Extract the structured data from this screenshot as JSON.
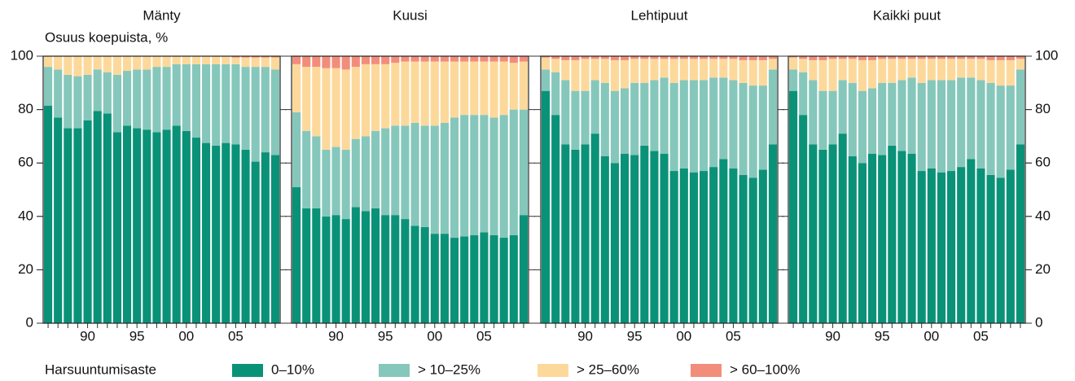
{
  "chart_data": [
    {
      "type": "bar",
      "title": "Mänty",
      "y_label": "Osuus koepuista, %",
      "legend_title": "Harsuuntumisaste",
      "categories": [
        null,
        null,
        null,
        null,
        "90",
        null,
        null,
        null,
        null,
        "95",
        null,
        null,
        null,
        null,
        "00",
        null,
        null,
        null,
        null,
        "05",
        null,
        null,
        null,
        null
      ],
      "ylim": [
        0,
        100
      ],
      "yticks": [
        0,
        20,
        40,
        60,
        80,
        100
      ],
      "series": [
        {
          "name": "0–10%",
          "color": "#0a9278",
          "values": [
            81.5,
            77,
            73,
            73,
            76,
            79.5,
            78.5,
            71.5,
            74,
            73,
            72.5,
            71.5,
            72.5,
            74,
            72,
            69.5,
            67.5,
            66.5,
            67.5,
            67,
            65,
            60.5,
            64,
            63
          ]
        },
        {
          "name": "> 10–25%",
          "color": "#86c7bb",
          "values": [
            14.5,
            18,
            20,
            19.5,
            17,
            15.5,
            15.5,
            21.5,
            20.5,
            22,
            22.5,
            24.5,
            23.5,
            23,
            25,
            27.5,
            29.5,
            30.5,
            29.5,
            30,
            31,
            35.5,
            32,
            32
          ]
        },
        {
          "name": "> 25–60%",
          "color": "#fcd99b",
          "values": [
            4,
            5,
            7,
            7.5,
            7,
            5,
            6,
            7,
            5.5,
            5,
            5,
            4,
            4,
            3,
            3,
            3,
            3,
            3,
            3,
            2.5,
            3.5,
            3.5,
            3.5,
            4.5
          ]
        },
        {
          "name": "> 60–100%",
          "color": "#f28d7c",
          "values": [
            0,
            0,
            0,
            0,
            0,
            0,
            0,
            0,
            0,
            0,
            0,
            0,
            0,
            0,
            0,
            0,
            0,
            0,
            0,
            0.5,
            0.5,
            0.5,
            0.5,
            0.5
          ]
        }
      ]
    },
    {
      "type": "bar",
      "title": "Kuusi",
      "categories": [
        null,
        null,
        null,
        null,
        "90",
        null,
        null,
        null,
        null,
        "95",
        null,
        null,
        null,
        null,
        "00",
        null,
        null,
        null,
        null,
        "05",
        null,
        null,
        null,
        null
      ],
      "ylim": [
        0,
        100
      ],
      "yticks": [
        0,
        20,
        40,
        60,
        80,
        100
      ],
      "series": [
        {
          "color": "#0a9278",
          "values": [
            51,
            43,
            43,
            40,
            40.5,
            39,
            43.5,
            42,
            43,
            40.5,
            40.5,
            39,
            36.5,
            36,
            33.5,
            33.5,
            32,
            32.5,
            33,
            34,
            33,
            32,
            33,
            40.5
          ]
        },
        {
          "color": "#86c7bb",
          "values": [
            28,
            29,
            27,
            25,
            25.5,
            26,
            25.5,
            28,
            29,
            32.5,
            33.5,
            35,
            38.5,
            38,
            40.5,
            41.5,
            45,
            45.5,
            45,
            44,
            44,
            46,
            47,
            39.5
          ]
        },
        {
          "color": "#fcd99b",
          "values": [
            18,
            24,
            26,
            30.5,
            29.5,
            30,
            27,
            27,
            25,
            24,
            23.5,
            24,
            23,
            24,
            24,
            23,
            21,
            20,
            20,
            20,
            21,
            20,
            17.5,
            18
          ]
        },
        {
          "color": "#f28d7c",
          "values": [
            3,
            4,
            4,
            4.5,
            4.5,
            5,
            4,
            3,
            3,
            3,
            2.5,
            2,
            2,
            2,
            2,
            2,
            2,
            2,
            2,
            2,
            2,
            2,
            2.5,
            2
          ]
        }
      ]
    },
    {
      "type": "bar",
      "title": "Lehtipuut",
      "categories": [
        null,
        null,
        null,
        null,
        "90",
        null,
        null,
        null,
        null,
        "95",
        null,
        null,
        null,
        null,
        "00",
        null,
        null,
        null,
        null,
        "05",
        null,
        null,
        null,
        null
      ],
      "ylim": [
        0,
        100
      ],
      "yticks": [
        0,
        20,
        40,
        60,
        80,
        100
      ],
      "series": [
        {
          "color": "#0a9278",
          "values": [
            87,
            78,
            67,
            65,
            67,
            71,
            62.5,
            60,
            63.5,
            63,
            66.5,
            64.5,
            63.5,
            57,
            58,
            56.5,
            57,
            58.5,
            61.5,
            58,
            55.5,
            54.5,
            57.5,
            67
          ]
        },
        {
          "color": "#86c7bb",
          "values": [
            8,
            16,
            24,
            22,
            20,
            20,
            27.5,
            27,
            24.5,
            27,
            23.5,
            26.5,
            28.5,
            33,
            33,
            34.5,
            34,
            33.5,
            30.5,
            33,
            34.5,
            34.5,
            31.5,
            28
          ]
        },
        {
          "color": "#fcd99b",
          "values": [
            4.5,
            5,
            7.5,
            11.5,
            12,
            8,
            9,
            11.5,
            10.5,
            9,
            9,
            8,
            7,
            9,
            8,
            8,
            8,
            7,
            7,
            8,
            8.5,
            9.5,
            9.5,
            4
          ]
        },
        {
          "color": "#f28d7c",
          "values": [
            0.5,
            1,
            1.5,
            1.5,
            1,
            1,
            1,
            1.5,
            1.5,
            1,
            1,
            1,
            1,
            1,
            1,
            1,
            1,
            1,
            1,
            1,
            1.5,
            1.5,
            1.5,
            1
          ]
        }
      ]
    },
    {
      "type": "bar",
      "title": "Kaikki puut",
      "categories": [
        null,
        null,
        null,
        null,
        "90",
        null,
        null,
        null,
        null,
        "95",
        null,
        null,
        null,
        null,
        "00",
        null,
        null,
        null,
        null,
        "05",
        null,
        null,
        null,
        null
      ],
      "ylim": [
        0,
        100
      ],
      "yticks": [
        0,
        20,
        40,
        60,
        80,
        100
      ],
      "series": [
        {
          "color": "#0a9278",
          "values": [
            87,
            78,
            67,
            65,
            67,
            71,
            62.5,
            60,
            63.5,
            63,
            66.5,
            64.5,
            63.5,
            57,
            58,
            56.5,
            57,
            58.5,
            61.5,
            58,
            55.5,
            54.5,
            57.5,
            67
          ]
        },
        {
          "color": "#86c7bb",
          "values": [
            8,
            16,
            24,
            22,
            20,
            20,
            27.5,
            27,
            24.5,
            27,
            23.5,
            26.5,
            28.5,
            33,
            33,
            34.5,
            34,
            33.5,
            30.5,
            33,
            34.5,
            34.5,
            31.5,
            28
          ]
        },
        {
          "color": "#fcd99b",
          "values": [
            4.5,
            5,
            7.5,
            11.5,
            12,
            8,
            9,
            11.5,
            10.5,
            9,
            9,
            8,
            7,
            9,
            8,
            8,
            8,
            7,
            7,
            8,
            8.5,
            9.5,
            9.5,
            4
          ]
        },
        {
          "color": "#f28d7c",
          "values": [
            0.5,
            1,
            1.5,
            1.5,
            1,
            1,
            1,
            1.5,
            1.5,
            1,
            1,
            1,
            1,
            1,
            1,
            1,
            1,
            1,
            1,
            1,
            1.5,
            1.5,
            1.5,
            1
          ]
        }
      ]
    }
  ]
}
